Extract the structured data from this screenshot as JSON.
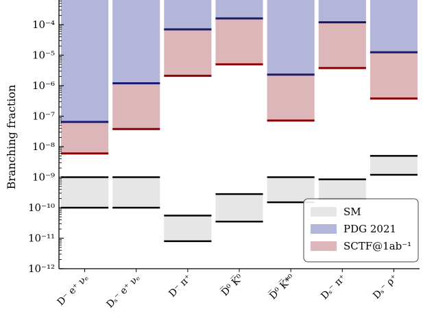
{
  "chart_data": {
    "type": "bar",
    "scale": "log",
    "ylabel": "Branching fraction",
    "ylim": [
      1e-12,
      0.001
    ],
    "grid": false,
    "legend_position": "bottom-right",
    "yticks": [
      {
        "value": 0.0001,
        "label": "10⁻⁴"
      },
      {
        "value": 1e-05,
        "label": "10⁻⁵"
      },
      {
        "value": 1e-06,
        "label": "10⁻⁶"
      },
      {
        "value": 1e-07,
        "label": "10⁻⁷"
      },
      {
        "value": 1e-08,
        "label": "10⁻⁸"
      },
      {
        "value": 1e-09,
        "label": "10⁻⁹"
      },
      {
        "value": 1e-10,
        "label": "10⁻¹⁰"
      },
      {
        "value": 1e-11,
        "label": "10⁻¹¹"
      },
      {
        "value": 1e-12,
        "label": "10⁻¹²"
      }
    ],
    "categories": [
      "D⁻ e⁺ νₑ",
      "Dₛ⁻ e⁺ νₑ",
      "D⁻ π⁺",
      "D̅⁰ K̅⁰",
      "D̅⁰ K̅*⁰",
      "Dₛ⁻ π⁺",
      "Dₛ⁻ ρ⁺"
    ],
    "series": [
      {
        "name": "SM",
        "color": "#e6e6e6",
        "line_color": "#000000",
        "ranges": [
          [
            1e-10,
            1e-09
          ],
          [
            1e-10,
            1e-09
          ],
          [
            8e-12,
            5.5e-11
          ],
          [
            3.5e-11,
            2.8e-10
          ],
          [
            1.5e-10,
            1e-09
          ],
          [
            1.9e-10,
            8.5e-10
          ],
          [
            1.2e-09,
            5e-09
          ]
        ]
      },
      {
        "name": "PDG 2021",
        "color": "#b3b6d9",
        "line_color": "#1b1b6e",
        "upper_limits": [
          6.5e-08,
          1.2e-06,
          7e-05,
          0.00016,
          2.3e-06,
          0.00012,
          1.25e-05
        ]
      },
      {
        "name": "SCTF@1ab⁻¹",
        "color": "#dcb6b8",
        "line_color": "#8b0000",
        "upper_limits": [
          6e-09,
          3.8e-08,
          2.1e-06,
          5e-06,
          7.2e-08,
          3.8e-06,
          3.8e-07
        ]
      }
    ]
  }
}
